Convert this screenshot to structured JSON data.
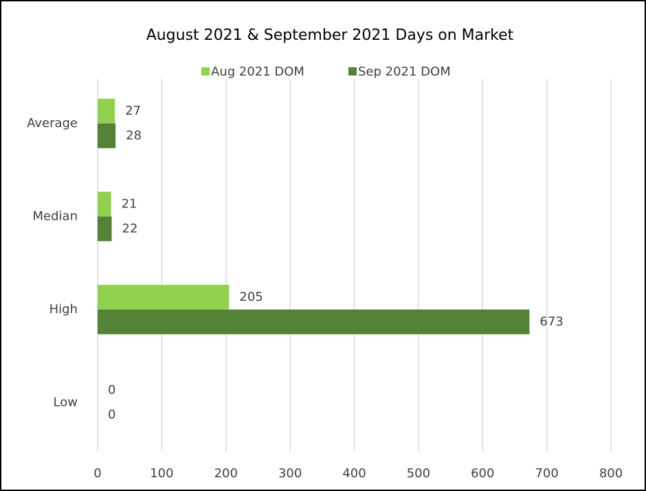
{
  "chart_data": {
    "type": "bar",
    "orientation": "horizontal",
    "title": "August 2021 & September 2021 Days on Market",
    "categories": [
      "Average",
      "Median",
      "High",
      "Low"
    ],
    "series": [
      {
        "name": "Aug 2021 DOM",
        "color": "#92d050",
        "values": [
          27,
          21,
          205,
          0
        ]
      },
      {
        "name": "Sep 2021 DOM",
        "color": "#548235",
        "values": [
          28,
          22,
          673,
          0
        ]
      }
    ],
    "xlim": [
      0,
      800
    ],
    "xticks": [
      0,
      100,
      200,
      300,
      400,
      500,
      600,
      700,
      800
    ],
    "grid": true,
    "legend": "top"
  }
}
